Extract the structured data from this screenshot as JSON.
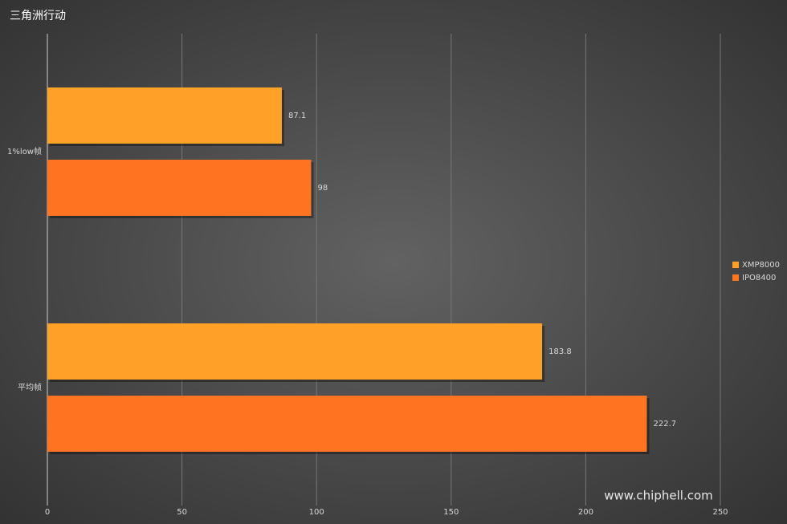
{
  "chart_data": {
    "type": "barh",
    "title": "三角洲行动",
    "categories": [
      "1%low帧",
      "平均帧"
    ],
    "series": [
      {
        "name": "XMP8000",
        "color": "#ffa126",
        "values": [
          87.1,
          183.8
        ]
      },
      {
        "name": "IPO8400",
        "color": "#ff7421",
        "values": [
          98,
          222.7
        ]
      }
    ],
    "xlim": [
      0,
      250
    ],
    "xticks": [
      0,
      50,
      100,
      150,
      200,
      250
    ],
    "grid": true,
    "legend": "right",
    "watermark": "www.chiphell.com"
  }
}
